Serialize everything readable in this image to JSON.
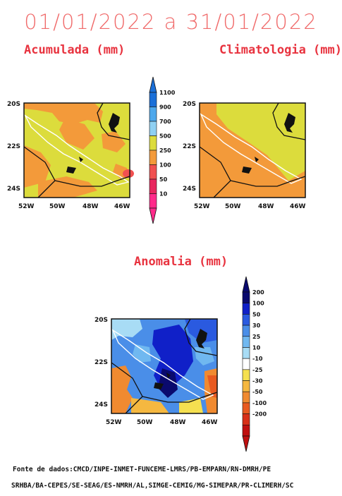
{
  "header": {
    "date_range": "01/01/2022 a 31/01/2022"
  },
  "panels": {
    "accumulated": {
      "title": "Acumulada (mm)"
    },
    "climatology": {
      "title": "Climatologia (mm)"
    },
    "anomaly": {
      "title": "Anomalia (mm)"
    }
  },
  "axes": {
    "lat_labels": [
      "20S",
      "22S",
      "24S"
    ],
    "lon_labels": [
      "52W",
      "50W",
      "48W",
      "46W"
    ]
  },
  "precip_colorbar": {
    "levels": [
      "1100",
      "900",
      "700",
      "500",
      "250",
      "100",
      "50",
      "10"
    ],
    "colors": [
      "#1a6fd8",
      "#4da8ec",
      "#8fd0f2",
      "#dcdc3c",
      "#f39a3a",
      "#f05050",
      "#e8265e",
      "#ff2a8a"
    ]
  },
  "anomaly_colorbar": {
    "levels": [
      "200",
      "100",
      "50",
      "30",
      "25",
      "10",
      "-10",
      "-25",
      "-30",
      "-50",
      "-100",
      "-200"
    ],
    "colors": [
      "#0a0a6e",
      "#1020c8",
      "#2a5ae0",
      "#4a8ee8",
      "#70b8f0",
      "#a8dcf5",
      "#ffffff",
      "#f5e050",
      "#f5b840",
      "#f08a30",
      "#e85a20",
      "#d83018",
      "#c01010"
    ]
  },
  "footer": {
    "source_line1": "Fonte de dados:CMCD/INPE-INMET-FUNCEME-LMRS/PB-EMPARN/RN-DMRH/PE",
    "source_line2": "SRHBA/BA-CEPES/SE-SEAG/ES-NMRH/AL,SIMGE-CEMIG/MG-SIMEPAR/PR-CLIMERH/SC"
  }
}
